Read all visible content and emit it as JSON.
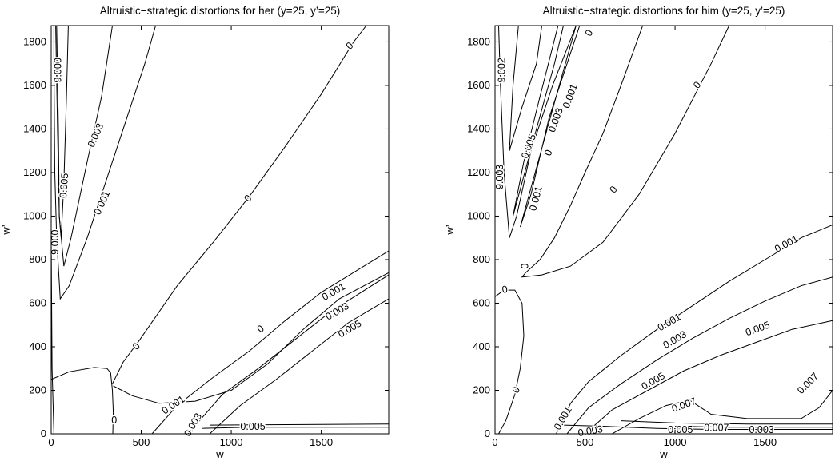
{
  "chart_data": [
    {
      "type": "contour",
      "title": "Altruistic−strategic distortions for her (y=25, y’=25)",
      "xlabel": "w",
      "ylabel": "w’",
      "xlim": [
        0,
        1875
      ],
      "ylim": [
        0,
        1875
      ],
      "xticks": [
        0,
        500,
        1000,
        1500
      ],
      "yticks": [
        0,
        200,
        400,
        600,
        800,
        1000,
        1200,
        1400,
        1600,
        1800
      ],
      "contours": [
        {
          "level": "0",
          "points": [
            [
              0,
              250
            ],
            [
              100,
              285
            ],
            [
              240,
              305
            ],
            [
              310,
              300
            ],
            [
              330,
              280
            ],
            [
              340,
              200
            ]
          ]
        },
        {
          "level": "0",
          "points": [
            [
              340,
              200
            ],
            [
              345,
              100
            ],
            [
              342,
              0
            ]
          ]
        },
        {
          "level": "0",
          "points": [
            [
              340,
              230
            ],
            [
              400,
              330
            ],
            [
              490,
              430
            ],
            [
              700,
              680
            ],
            [
              900,
              880
            ],
            [
              1100,
              1090
            ],
            [
              1300,
              1320
            ],
            [
              1500,
              1560
            ],
            [
              1680,
              1800
            ],
            [
              1750,
              1875
            ]
          ]
        },
        {
          "level": "0",
          "points": [
            [
              345,
              220
            ],
            [
              450,
              175
            ],
            [
              600,
              140
            ],
            [
              800,
              150
            ],
            [
              1000,
              200
            ],
            [
              1200,
              320
            ],
            [
              1400,
              480
            ],
            [
              1600,
              620
            ],
            [
              1875,
              740
            ]
          ]
        },
        {
          "level": "0",
          "points": [
            [
              0,
              900
            ],
            [
              5,
              300
            ],
            [
              15,
              0
            ]
          ]
        },
        {
          "level": "0.001",
          "points": [
            [
              15,
              1875
            ],
            [
              15,
              1700
            ],
            [
              20,
              1200
            ],
            [
              30,
              900
            ],
            [
              50,
              620
            ],
            [
              100,
              680
            ],
            [
              200,
              900
            ],
            [
              300,
              1150
            ],
            [
              420,
              1450
            ],
            [
              520,
              1700
            ],
            [
              580,
              1875
            ]
          ]
        },
        {
          "level": "0.003",
          "points": [
            [
              25,
              1875
            ],
            [
              35,
              1400
            ],
            [
              45,
              1000
            ],
            [
              70,
              770
            ],
            [
              110,
              900
            ],
            [
              200,
              1250
            ],
            [
              280,
              1550
            ],
            [
              340,
              1875
            ]
          ]
        },
        {
          "level": "0.005",
          "points": [
            [
              30,
              1875
            ],
            [
              40,
              1400
            ],
            [
              45,
              1000
            ],
            [
              55,
              900
            ],
            [
              70,
              1150
            ],
            [
              85,
              1550
            ],
            [
              95,
              1875
            ]
          ]
        },
        {
          "level": "0.001",
          "points": [
            [
              560,
              0
            ],
            [
              700,
              130
            ],
            [
              900,
              260
            ],
            [
              1100,
              380
            ],
            [
              1300,
              520
            ],
            [
              1500,
              650
            ],
            [
              1875,
              840
            ]
          ]
        },
        {
          "level": "0.003",
          "points": [
            [
              760,
              0
            ],
            [
              950,
              180
            ],
            [
              1150,
              300
            ],
            [
              1350,
              430
            ],
            [
              1550,
              560
            ],
            [
              1875,
              730
            ]
          ]
        },
        {
          "level": "0.005",
          "points": [
            [
              880,
              0
            ],
            [
              1050,
              130
            ],
            [
              1250,
              250
            ],
            [
              1450,
              380
            ],
            [
              1650,
              510
            ],
            [
              1875,
              620
            ]
          ]
        },
        {
          "level": "0.005",
          "points": [
            [
              840,
              25
            ],
            [
              1100,
              30
            ],
            [
              1500,
              30
            ],
            [
              1875,
              30
            ]
          ]
        },
        {
          "level": "0.007",
          "points": [
            [
              880,
              40
            ],
            [
              1200,
              42
            ],
            [
              1875,
              45
            ]
          ]
        }
      ],
      "labels": [
        {
          "text": "0",
          "x": 1660,
          "y": 1780,
          "rot": -45
        },
        {
          "text": "0",
          "x": 1095,
          "y": 1080,
          "rot": -48
        },
        {
          "text": "0",
          "x": 1165,
          "y": 480,
          "rot": -40
        },
        {
          "text": "0",
          "x": 475,
          "y": 400,
          "rot": -50
        },
        {
          "text": "0",
          "x": 350,
          "y": 60,
          "rot": 0
        },
        {
          "text": "0.003",
          "x": 250,
          "y": 1370,
          "rot": -66
        },
        {
          "text": "0.001",
          "x": 285,
          "y": 1060,
          "rot": -66
        },
        {
          "text": "0.005",
          "x": 75,
          "y": 1140,
          "rot": -86
        },
        {
          "text": "0.001",
          "x": 1570,
          "y": 650,
          "rot": -30
        },
        {
          "text": "0.003",
          "x": 1590,
          "y": 560,
          "rot": -30
        },
        {
          "text": "0.005",
          "x": 1660,
          "y": 480,
          "rot": -30
        },
        {
          "text": "0.001",
          "x": 680,
          "y": 130,
          "rot": -34
        },
        {
          "text": "0.003",
          "x": 790,
          "y": 40,
          "rot": -60
        },
        {
          "text": "0.005",
          "x": 1120,
          "y": 30,
          "rot": 0
        },
        {
          "text": "9.000",
          "x": 40,
          "y": 1670,
          "rot": -90
        },
        {
          "text": "9.000",
          "x": 25,
          "y": 880,
          "rot": -90
        }
      ]
    },
    {
      "type": "contour",
      "title": "Altruistic−strategic distortions for him (y=25, y’=25)",
      "xlabel": "w",
      "ylabel": "w’",
      "xlim": [
        0,
        1875
      ],
      "ylim": [
        0,
        1875
      ],
      "xticks": [
        0,
        500,
        1000,
        1500
      ],
      "yticks": [
        0,
        200,
        400,
        600,
        800,
        1000,
        1200,
        1400,
        1600,
        1800
      ],
      "contours": [
        {
          "level": "0",
          "points": [
            [
              0,
              630
            ],
            [
              50,
              660
            ],
            [
              110,
              660
            ],
            [
              150,
              600
            ],
            [
              160,
              450
            ],
            [
              140,
              300
            ],
            [
              110,
              180
            ],
            [
              60,
              60
            ],
            [
              20,
              0
            ]
          ]
        },
        {
          "level": "0",
          "points": [
            [
              820,
              1875
            ],
            [
              700,
              1600
            ],
            [
              600,
              1380
            ],
            [
              500,
              1200
            ],
            [
              420,
              1050
            ],
            [
              330,
              900
            ],
            [
              250,
              800
            ],
            [
              170,
              740
            ],
            [
              150,
              720
            ],
            [
              260,
              730
            ],
            [
              420,
              770
            ],
            [
              600,
              880
            ],
            [
              800,
              1100
            ],
            [
              1000,
              1380
            ],
            [
              1200,
              1700
            ],
            [
              1300,
              1875
            ]
          ]
        },
        {
          "level": "0",
          "points": [
            [
              20,
              1875
            ],
            [
              30,
              1600
            ],
            [
              50,
              1200
            ],
            [
              80,
              900
            ],
            [
              120,
              1000
            ],
            [
              200,
              1300
            ],
            [
              320,
              1600
            ],
            [
              450,
              1875
            ]
          ]
        },
        {
          "level": "0.001",
          "points": [
            [
              450,
              1875
            ],
            [
              340,
              1550
            ],
            [
              240,
              1250
            ],
            [
              140,
              950
            ],
            [
              200,
              1100
            ],
            [
              300,
              1450
            ],
            [
              400,
              1700
            ],
            [
              470,
              1875
            ]
          ]
        },
        {
          "level": "0.003",
          "points": [
            [
              350,
              1875
            ],
            [
              250,
              1550
            ],
            [
              160,
              1250
            ],
            [
              100,
              1000
            ],
            [
              230,
              1400
            ],
            [
              330,
              1700
            ],
            [
              380,
              1875
            ]
          ]
        },
        {
          "level": "0.005",
          "points": [
            [
              130,
              1875
            ],
            [
              100,
              1600
            ],
            [
              80,
              1300
            ],
            [
              150,
              1500
            ],
            [
              230,
              1700
            ],
            [
              260,
              1875
            ]
          ]
        },
        {
          "level": "0.001",
          "points": [
            [
              340,
              0
            ],
            [
              420,
              140
            ],
            [
              520,
              240
            ],
            [
              700,
              360
            ],
            [
              900,
              480
            ],
            [
              1100,
              590
            ],
            [
              1300,
              700
            ],
            [
              1500,
              800
            ],
            [
              1700,
              900
            ],
            [
              1875,
              960
            ]
          ]
        },
        {
          "level": "0.003",
          "points": [
            [
              400,
              0
            ],
            [
              520,
              120
            ],
            [
              700,
              230
            ],
            [
              900,
              340
            ],
            [
              1100,
              440
            ],
            [
              1300,
              530
            ],
            [
              1500,
              610
            ],
            [
              1700,
              680
            ],
            [
              1875,
              720
            ]
          ]
        },
        {
          "level": "0.005",
          "points": [
            [
              500,
              0
            ],
            [
              650,
              110
            ],
            [
              850,
              200
            ],
            [
              1050,
              290
            ],
            [
              1250,
              360
            ],
            [
              1450,
              420
            ],
            [
              1650,
              480
            ],
            [
              1875,
              520
            ]
          ]
        },
        {
          "level": "0.007",
          "points": [
            [
              650,
              0
            ],
            [
              800,
              70
            ],
            [
              950,
              130
            ],
            [
              1080,
              155
            ],
            [
              1200,
              90
            ],
            [
              1400,
              70
            ],
            [
              1700,
              70
            ],
            [
              1800,
              120
            ],
            [
              1875,
              200
            ]
          ]
        },
        {
          "level": "0.003",
          "points": [
            [
              380,
              40
            ],
            [
              600,
              35
            ],
            [
              900,
              25
            ],
            [
              1200,
              20
            ],
            [
              1500,
              20
            ],
            [
              1875,
              20
            ]
          ]
        },
        {
          "level": "0.005",
          "points": [
            [
              700,
              60
            ],
            [
              1000,
              50
            ],
            [
              1400,
              45
            ],
            [
              1875,
              45
            ]
          ]
        },
        {
          "level": "0.007",
          "points": [
            [
              1000,
              35
            ],
            [
              1300,
              30
            ],
            [
              1875,
              30
            ]
          ]
        }
      ],
      "labels": [
        {
          "text": "0",
          "x": 525,
          "y": 1840,
          "rot": -60
        },
        {
          "text": "0",
          "x": 1125,
          "y": 1600,
          "rot": -50
        },
        {
          "text": "0",
          "x": 660,
          "y": 1120,
          "rot": -50
        },
        {
          "text": "0",
          "x": 300,
          "y": 1290,
          "rot": -70
        },
        {
          "text": "0",
          "x": 170,
          "y": 770,
          "rot": -90
        },
        {
          "text": "0",
          "x": 55,
          "y": 660,
          "rot": -10
        },
        {
          "text": "0",
          "x": 120,
          "y": 200,
          "rot": -60
        },
        {
          "text": "0.001",
          "x": 420,
          "y": 1550,
          "rot": -70
        },
        {
          "text": "0.003",
          "x": 340,
          "y": 1440,
          "rot": -70
        },
        {
          "text": "0.005",
          "x": 190,
          "y": 1320,
          "rot": -70
        },
        {
          "text": "0.001",
          "x": 230,
          "y": 1080,
          "rot": -75
        },
        {
          "text": "0.001",
          "x": 1620,
          "y": 870,
          "rot": -28
        },
        {
          "text": "0.001",
          "x": 970,
          "y": 510,
          "rot": -30
        },
        {
          "text": "0.003",
          "x": 1000,
          "y": 430,
          "rot": -30
        },
        {
          "text": "0.005",
          "x": 1460,
          "y": 480,
          "rot": -20
        },
        {
          "text": "0.005",
          "x": 880,
          "y": 240,
          "rot": -30
        },
        {
          "text": "0.007",
          "x": 1050,
          "y": 130,
          "rot": -20
        },
        {
          "text": "0.007",
          "x": 1740,
          "y": 230,
          "rot": -45
        },
        {
          "text": "0.001",
          "x": 380,
          "y": 70,
          "rot": -60
        },
        {
          "text": "0.003",
          "x": 530,
          "y": 10,
          "rot": -10
        },
        {
          "text": "0.005",
          "x": 1030,
          "y": 15,
          "rot": 0
        },
        {
          "text": "0.007",
          "x": 1230,
          "y": 25,
          "rot": 0
        },
        {
          "text": "0.003",
          "x": 1480,
          "y": 15,
          "rot": 0
        },
        {
          "text": "9.002",
          "x": 40,
          "y": 1670,
          "rot": -90
        },
        {
          "text": "9.003",
          "x": 30,
          "y": 1180,
          "rot": -90
        }
      ]
    }
  ]
}
